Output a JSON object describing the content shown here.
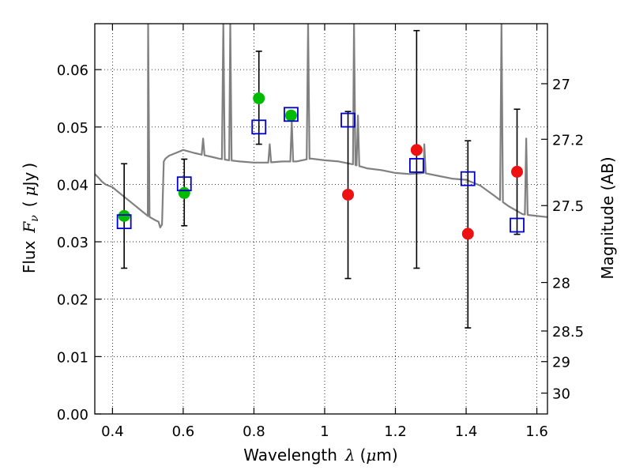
{
  "chart_data": {
    "type": "scatter",
    "title": "",
    "xlabel": "Wavelength",
    "xlabel_symbol": "λ",
    "xlabel_unit_open": "(",
    "xlabel_unit_mu": "μ",
    "xlabel_unit_rest": "m)",
    "ylabel": "Flux",
    "ylabel_symbol": "F",
    "ylabel_sub": "ν",
    "ylabel_unit_open": "(",
    "ylabel_unit_mu": "μ",
    "ylabel_unit_rest": "Jy",
    "ylabel_unit_close": ")",
    "y2label": "Magnitude (AB)",
    "xlim": [
      0.35,
      1.63
    ],
    "ylim": [
      0.0,
      0.068
    ],
    "grid": true,
    "grid_style": "dotted",
    "x_ticks": [
      0.4,
      0.6,
      0.8,
      1.0,
      1.2,
      1.4,
      1.6
    ],
    "x_tick_labels": [
      "0.4",
      "0.6",
      "0.8",
      "1",
      "1.2",
      "1.4",
      "1.6"
    ],
    "y_ticks": [
      0.0,
      0.01,
      0.02,
      0.03,
      0.04,
      0.05,
      0.06
    ],
    "y_tick_labels": [
      "0.00",
      "0.01",
      "0.02",
      "0.03",
      "0.04",
      "0.05",
      "0.06"
    ],
    "y2_ticks": [
      {
        "label": "27",
        "mag": 27.0
      },
      {
        "label": "27.2",
        "mag": 27.2
      },
      {
        "label": "27.5",
        "mag": 27.5
      },
      {
        "label": "28",
        "mag": 28.0
      },
      {
        "label": "28.5",
        "mag": 28.5
      },
      {
        "label": "29",
        "mag": 29.0
      },
      {
        "label": "30",
        "mag": 30.0
      }
    ],
    "colors": {
      "spectrum": "#808080",
      "model_box": "#0000cc",
      "detection": "#00bb00",
      "nondetection": "#ee1111",
      "errorbar": "#000000"
    },
    "series": [
      {
        "kind": "model-photometry",
        "x": [
          0.433,
          0.603,
          0.814,
          0.905,
          1.066,
          1.26,
          1.405,
          1.544
        ],
        "y": [
          0.0335,
          0.0401,
          0.05,
          0.0522,
          0.0512,
          0.0433,
          0.041,
          0.0329
        ]
      },
      {
        "kind": "observed-detections",
        "x": [
          0.433,
          0.603,
          0.814,
          0.905
        ],
        "y": [
          0.0345,
          0.0385,
          0.055,
          0.052
        ]
      },
      {
        "kind": "observed-nondetections",
        "x": [
          1.066,
          1.26,
          1.405,
          1.544
        ],
        "y": [
          0.0382,
          0.046,
          0.0314,
          0.0422
        ]
      }
    ],
    "errorbars": [
      {
        "x": 0.433,
        "low": 0.0254,
        "high": 0.0436
      },
      {
        "x": 0.603,
        "low": 0.0328,
        "high": 0.0444
      },
      {
        "x": 0.814,
        "low": 0.047,
        "high": 0.0632
      },
      {
        "x": 1.066,
        "low": 0.0236,
        "high": 0.0527
      },
      {
        "x": 1.26,
        "low": 0.0254,
        "high": 0.0668
      },
      {
        "x": 1.405,
        "low": 0.015,
        "high": 0.0476
      },
      {
        "x": 1.544,
        "low": 0.0313,
        "high": 0.0531
      }
    ],
    "spectrum": {
      "x": [
        0.35,
        0.36,
        0.37,
        0.38,
        0.4,
        0.42,
        0.45,
        0.48,
        0.5,
        0.52,
        0.53,
        0.535,
        0.54,
        0.545,
        0.55,
        0.56,
        0.58,
        0.6,
        0.63,
        0.65,
        0.68,
        0.7,
        0.73,
        0.76,
        0.8,
        0.84,
        0.88,
        0.92,
        0.96,
        1.0,
        1.04,
        1.08,
        1.12,
        1.16,
        1.2,
        1.24,
        1.28,
        1.32,
        1.36,
        1.4,
        1.44,
        1.48,
        1.52,
        1.56,
        1.6,
        1.63
      ],
      "y": [
        0.0418,
        0.0412,
        0.0405,
        0.04,
        0.0395,
        0.0385,
        0.037,
        0.0355,
        0.0345,
        0.0338,
        0.0335,
        0.0325,
        0.033,
        0.044,
        0.0445,
        0.045,
        0.0455,
        0.046,
        0.0455,
        0.0452,
        0.0448,
        0.0445,
        0.0442,
        0.044,
        0.0438,
        0.0438,
        0.044,
        0.044,
        0.0445,
        0.0442,
        0.044,
        0.0435,
        0.0428,
        0.0425,
        0.042,
        0.0418,
        0.042,
        0.0415,
        0.041,
        0.0408,
        0.0398,
        0.038,
        0.0362,
        0.0348,
        0.0345,
        0.0343
      ]
    },
    "emission_lines": [
      {
        "x": 0.5007,
        "peak": 0.068
      },
      {
        "x": 0.6563,
        "peak": 0.048
      },
      {
        "x": 0.7135,
        "peak": 0.068
      },
      {
        "x": 0.733,
        "peak": 0.068
      },
      {
        "x": 0.8446,
        "peak": 0.047
      },
      {
        "x": 0.9069,
        "peak": 0.051
      },
      {
        "x": 0.9531,
        "peak": 0.068
      },
      {
        "x": 1.083,
        "peak": 0.068
      },
      {
        "x": 1.094,
        "peak": 0.052
      },
      {
        "x": 1.2818,
        "peak": 0.047
      },
      {
        "x": 1.5,
        "peak": 0.068
      },
      {
        "x": 1.57,
        "peak": 0.048
      }
    ]
  }
}
